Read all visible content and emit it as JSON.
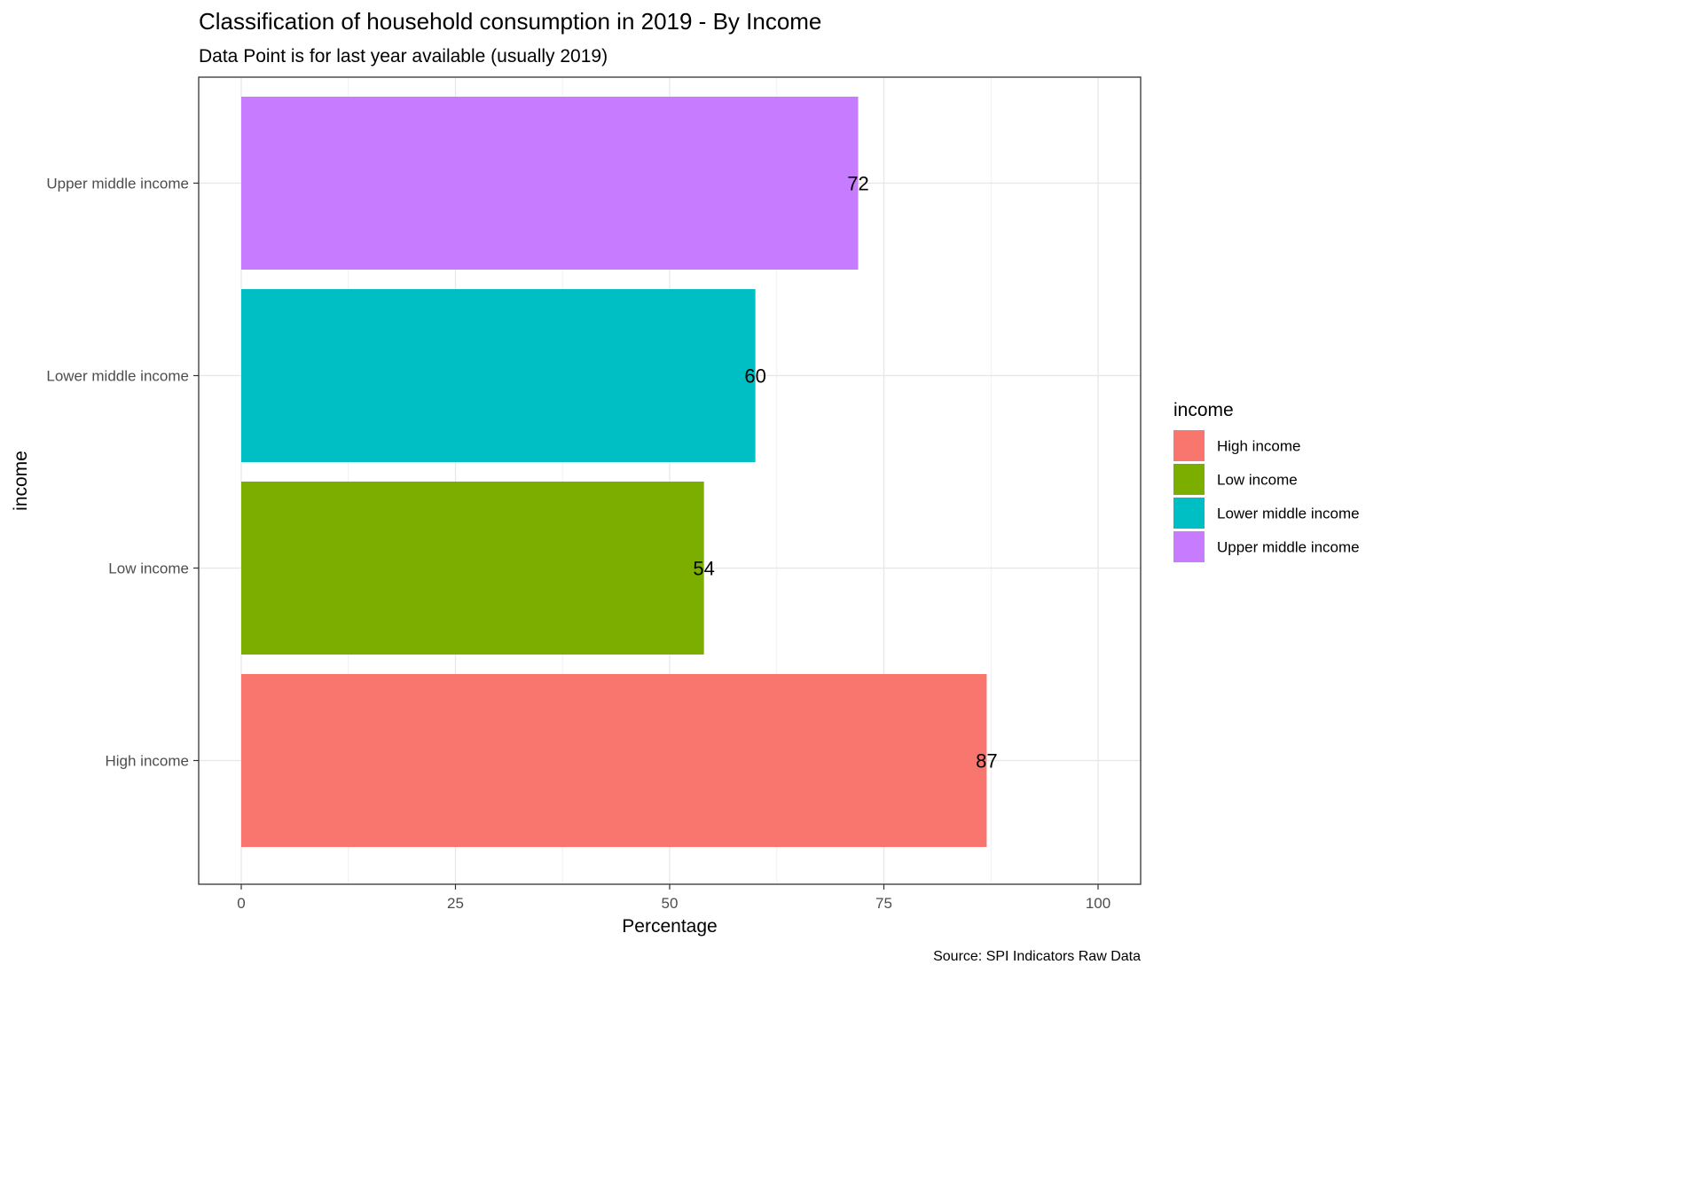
{
  "chart_data": {
    "type": "bar",
    "orientation": "horizontal",
    "title": "Classification of household consumption in 2019 - By Income",
    "subtitle": "Data Point is for last year available (usually 2019)",
    "xlabel": "Percentage",
    "ylabel": "income",
    "caption": "Source: SPI Indicators Raw Data",
    "xlim": [
      0,
      100
    ],
    "xticks": [
      0,
      25,
      50,
      75,
      100
    ],
    "categories": [
      "High income",
      "Low income",
      "Lower middle income",
      "Upper middle income"
    ],
    "values": [
      87,
      54,
      60,
      72
    ],
    "value_labels": [
      "87",
      "54",
      "60",
      "72"
    ],
    "colors": [
      "#F8766D",
      "#7CAE00",
      "#00BFC4",
      "#C77CFF"
    ],
    "grid": true,
    "legend": {
      "title": "income",
      "position": "right",
      "items": [
        "High income",
        "Low income",
        "Lower middle income",
        "Upper middle income"
      ]
    }
  }
}
